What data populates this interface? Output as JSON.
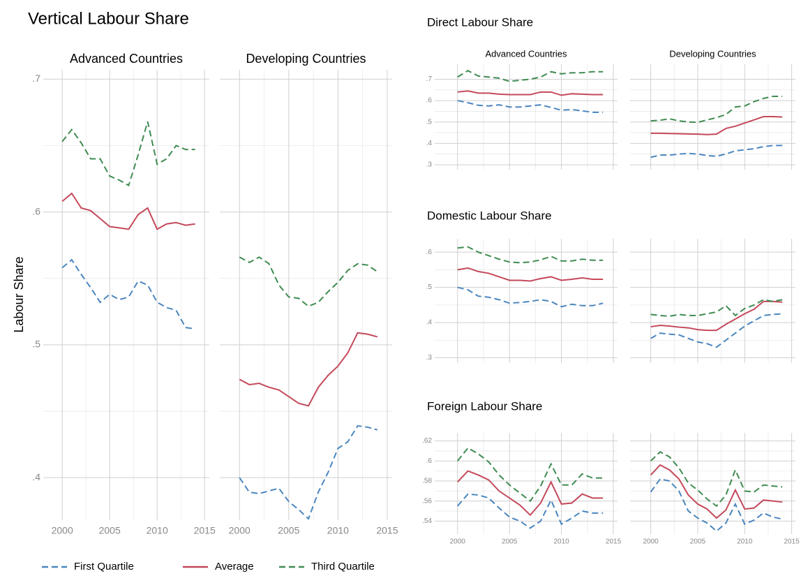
{
  "legend": [
    {
      "name": "First Quartile",
      "color": "#4a86bf",
      "dash": true
    },
    {
      "name": "Average",
      "color": "#c4495b",
      "dash": false
    },
    {
      "name": "Third Quartile",
      "color": "#3f8b52",
      "dash": true
    }
  ],
  "chart_data": [
    {
      "type": "line",
      "title": "Vertical Labour Share",
      "ylabel": "Labour Share",
      "x": [
        2000,
        2001,
        2002,
        2003,
        2004,
        2005,
        2006,
        2007,
        2008,
        2009,
        2010,
        2011,
        2012,
        2013,
        2014
      ],
      "xlim": [
        1998,
        2015.5
      ],
      "xticks": [
        2000,
        2005,
        2010,
        2015
      ],
      "xtick_labels": true,
      "ylim": [
        0.368,
        0.707
      ],
      "yticks": [
        {
          "value": 0.4,
          "label": ".4"
        },
        {
          "value": 0.5,
          "label": ".5"
        },
        {
          "value": 0.6,
          "label": ".6"
        },
        {
          "value": 0.7,
          "label": ".7"
        }
      ],
      "grid": true,
      "panels": [
        {
          "subtitle": "Advanced Countries",
          "series": [
            {
              "values": [
                0.558,
                0.564,
                0.553,
                0.543,
                0.532,
                0.538,
                0.534,
                0.536,
                0.548,
                0.545,
                0.532,
                0.528,
                0.526,
                0.513,
                0.512
              ]
            },
            {
              "values": [
                0.608,
                0.614,
                0.603,
                0.601,
                0.595,
                0.589,
                0.588,
                0.587,
                0.598,
                0.603,
                0.587,
                0.591,
                0.592,
                0.59,
                0.591
              ]
            },
            {
              "values": [
                0.653,
                0.662,
                0.652,
                0.64,
                0.64,
                0.627,
                0.624,
                0.62,
                0.643,
                0.668,
                0.636,
                0.64,
                0.65,
                0.647,
                0.647
              ]
            }
          ]
        },
        {
          "subtitle": "Developing Countries",
          "series": [
            {
              "values": [
                0.4,
                0.389,
                0.388,
                0.39,
                0.392,
                0.382,
                0.376,
                0.369,
                0.389,
                0.404,
                0.422,
                0.427,
                0.439,
                0.438,
                0.436
              ]
            },
            {
              "values": [
                0.474,
                0.47,
                0.471,
                0.468,
                0.466,
                0.461,
                0.456,
                0.454,
                0.468,
                0.477,
                0.484,
                0.494,
                0.509,
                0.508,
                0.506
              ]
            },
            {
              "values": [
                0.566,
                0.562,
                0.566,
                0.561,
                0.545,
                0.536,
                0.535,
                0.529,
                0.532,
                0.54,
                0.547,
                0.556,
                0.561,
                0.56,
                0.555
              ]
            }
          ]
        }
      ]
    },
    {
      "type": "line",
      "title": "Direct Labour Share",
      "x": [
        2000,
        2001,
        2002,
        2003,
        2004,
        2005,
        2006,
        2007,
        2008,
        2009,
        2010,
        2011,
        2012,
        2013,
        2014
      ],
      "xlim": [
        1997.8,
        2015.4
      ],
      "xticks": [
        2000,
        2005,
        2010,
        2015
      ],
      "xtick_labels": false,
      "ylim": [
        0.277,
        0.77
      ],
      "yticks": [
        {
          "value": 0.3,
          "label": ".3"
        },
        {
          "value": 0.4,
          "label": ".4"
        },
        {
          "value": 0.5,
          "label": ".5"
        },
        {
          "value": 0.6,
          "label": ".6"
        },
        {
          "value": 0.7,
          "label": ".7"
        }
      ],
      "grid": true,
      "panels": [
        {
          "subtitle": "Advanced Countries",
          "series": [
            {
              "values": [
                0.6,
                0.59,
                0.578,
                0.575,
                0.58,
                0.57,
                0.57,
                0.575,
                0.58,
                0.568,
                0.555,
                0.558,
                0.552,
                0.545,
                0.545
              ]
            },
            {
              "values": [
                0.64,
                0.645,
                0.635,
                0.635,
                0.63,
                0.628,
                0.628,
                0.628,
                0.64,
                0.64,
                0.625,
                0.632,
                0.63,
                0.628,
                0.628
              ]
            },
            {
              "values": [
                0.71,
                0.74,
                0.715,
                0.71,
                0.705,
                0.69,
                0.695,
                0.7,
                0.71,
                0.735,
                0.725,
                0.73,
                0.73,
                0.735,
                0.735
              ]
            }
          ]
        },
        {
          "subtitle": "Developing Countries",
          "series": [
            {
              "values": [
                0.335,
                0.345,
                0.345,
                0.35,
                0.353,
                0.35,
                0.343,
                0.34,
                0.35,
                0.365,
                0.37,
                0.375,
                0.385,
                0.39,
                0.39
              ]
            },
            {
              "values": [
                0.447,
                0.447,
                0.446,
                0.445,
                0.444,
                0.443,
                0.441,
                0.443,
                0.47,
                0.48,
                0.495,
                0.51,
                0.525,
                0.525,
                0.523
              ]
            },
            {
              "values": [
                0.505,
                0.508,
                0.515,
                0.505,
                0.5,
                0.498,
                0.51,
                0.52,
                0.535,
                0.57,
                0.575,
                0.595,
                0.61,
                0.62,
                0.62
              ]
            }
          ]
        }
      ]
    },
    {
      "type": "line",
      "title": "Domestic Labour Share",
      "x": [
        2000,
        2001,
        2002,
        2003,
        2004,
        2005,
        2006,
        2007,
        2008,
        2009,
        2010,
        2011,
        2012,
        2013,
        2014
      ],
      "xlim": [
        1997.8,
        2015.4
      ],
      "xticks": [
        2000,
        2005,
        2010,
        2015
      ],
      "xtick_labels": false,
      "ylim": [
        0.285,
        0.638
      ],
      "yticks": [
        {
          "value": 0.3,
          "label": ".3"
        },
        {
          "value": 0.4,
          "label": ".4"
        },
        {
          "value": 0.5,
          "label": ".5"
        },
        {
          "value": 0.6,
          "label": ".6"
        }
      ],
      "grid": true,
      "panels": [
        {
          "series": [
            {
              "values": [
                0.5,
                0.493,
                0.475,
                0.472,
                0.465,
                0.455,
                0.457,
                0.46,
                0.465,
                0.46,
                0.445,
                0.452,
                0.448,
                0.448,
                0.455
              ]
            },
            {
              "values": [
                0.55,
                0.555,
                0.545,
                0.54,
                0.53,
                0.52,
                0.52,
                0.518,
                0.525,
                0.53,
                0.52,
                0.523,
                0.527,
                0.523,
                0.523
              ]
            },
            {
              "values": [
                0.612,
                0.615,
                0.6,
                0.59,
                0.58,
                0.572,
                0.57,
                0.572,
                0.578,
                0.588,
                0.575,
                0.575,
                0.58,
                0.577,
                0.577
              ]
            }
          ]
        },
        {
          "series": [
            {
              "values": [
                0.355,
                0.37,
                0.367,
                0.365,
                0.355,
                0.345,
                0.34,
                0.33,
                0.35,
                0.37,
                0.39,
                0.405,
                0.42,
                0.423,
                0.425
              ]
            },
            {
              "values": [
                0.388,
                0.392,
                0.39,
                0.387,
                0.385,
                0.38,
                0.378,
                0.378,
                0.395,
                0.41,
                0.425,
                0.438,
                0.46,
                0.46,
                0.458
              ]
            },
            {
              "values": [
                0.423,
                0.42,
                0.418,
                0.423,
                0.42,
                0.42,
                0.425,
                0.43,
                0.448,
                0.42,
                0.44,
                0.45,
                0.465,
                0.46,
                0.465
              ]
            }
          ]
        }
      ]
    },
    {
      "type": "line",
      "title": "Foreign Labour Share",
      "x": [
        2000,
        2001,
        2002,
        2003,
        2004,
        2005,
        2006,
        2007,
        2008,
        2009,
        2010,
        2011,
        2012,
        2013,
        2014
      ],
      "xlim": [
        1997.8,
        2015.4
      ],
      "xticks": [
        2000,
        2005,
        2010,
        2015
      ],
      "xtick_labels": true,
      "ylim": [
        0.527,
        0.628
      ],
      "yticks": [
        {
          "value": 0.54,
          "label": ".54"
        },
        {
          "value": 0.56,
          "label": ".56"
        },
        {
          "value": 0.58,
          "label": ".58"
        },
        {
          "value": 0.6,
          "label": ".6"
        },
        {
          "value": 0.62,
          "label": ".62"
        }
      ],
      "grid": true,
      "panels": [
        {
          "series": [
            {
              "values": [
                0.555,
                0.567,
                0.566,
                0.563,
                0.553,
                0.544,
                0.54,
                0.533,
                0.54,
                0.561,
                0.537,
                0.543,
                0.55,
                0.548,
                0.548
              ]
            },
            {
              "values": [
                0.579,
                0.59,
                0.586,
                0.581,
                0.57,
                0.563,
                0.556,
                0.546,
                0.558,
                0.579,
                0.557,
                0.558,
                0.567,
                0.563,
                0.563
              ]
            },
            {
              "values": [
                0.6,
                0.613,
                0.607,
                0.599,
                0.586,
                0.576,
                0.568,
                0.56,
                0.575,
                0.597,
                0.576,
                0.576,
                0.587,
                0.583,
                0.583
              ]
            }
          ]
        },
        {
          "series": [
            {
              "values": [
                0.569,
                0.582,
                0.58,
                0.57,
                0.55,
                0.543,
                0.538,
                0.53,
                0.538,
                0.557,
                0.537,
                0.541,
                0.548,
                0.544,
                0.542
              ]
            },
            {
              "values": [
                0.586,
                0.596,
                0.591,
                0.582,
                0.566,
                0.557,
                0.552,
                0.543,
                0.551,
                0.571,
                0.552,
                0.553,
                0.561,
                0.56,
                0.559
              ]
            },
            {
              "values": [
                0.6,
                0.609,
                0.604,
                0.593,
                0.578,
                0.571,
                0.562,
                0.555,
                0.566,
                0.591,
                0.57,
                0.569,
                0.576,
                0.575,
                0.574
              ]
            }
          ]
        }
      ]
    }
  ]
}
